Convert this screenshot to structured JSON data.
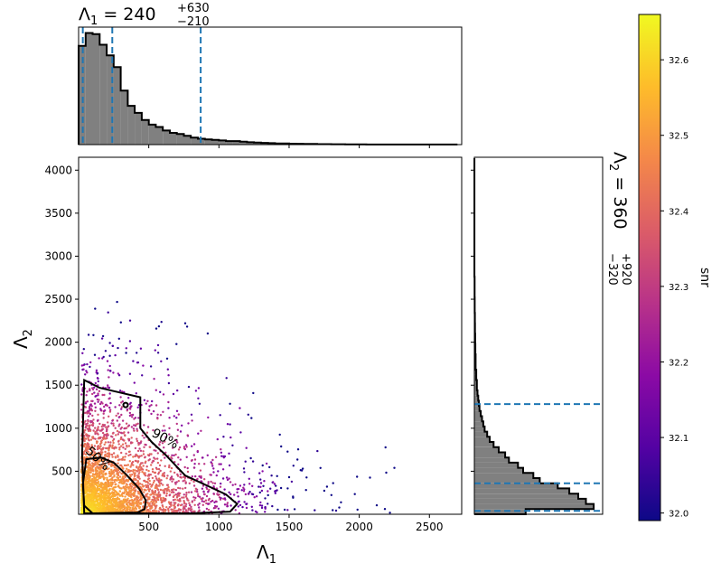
{
  "chart_data": {
    "type": "scatter",
    "top_title": {
      "base": "Λ",
      "sub": "1",
      "eq": " = 240",
      "plus": "+630",
      "minus": "−210"
    },
    "right_title": {
      "base": "Λ",
      "sub": "2",
      "eq": " = 360",
      "plus": "+920",
      "minus": "−320"
    },
    "xlabel": {
      "base": "Λ",
      "sub": "1"
    },
    "ylabel": {
      "base": "Λ",
      "sub": "2"
    },
    "colorbar_label": "snr",
    "xlim": [
      0,
      2730
    ],
    "ylim": [
      0,
      4150
    ],
    "x_ticks": [
      "500",
      "1000",
      "1500",
      "2000",
      "2500"
    ],
    "y_ticks": [
      "500",
      "1000",
      "1500",
      "2000",
      "2500",
      "3000",
      "3500",
      "4000"
    ],
    "colorbar_range": [
      31.99,
      32.66
    ],
    "colorbar_ticks": [
      "32.0",
      "32.1",
      "32.2",
      "32.3",
      "32.4",
      "32.5",
      "32.6"
    ],
    "colormap": "plasma",
    "contours": [
      {
        "label": "50%",
        "points": [
          [
            55,
            640
          ],
          [
            160,
            660
          ],
          [
            250,
            600
          ],
          [
            340,
            460
          ],
          [
            430,
            300
          ],
          [
            480,
            160
          ],
          [
            470,
            60
          ],
          [
            420,
            20
          ],
          [
            100,
            10
          ],
          [
            40,
            100
          ],
          [
            30,
            350
          ],
          [
            55,
            640
          ]
        ]
      },
      {
        "label": "90%",
        "points": [
          [
            40,
            1560
          ],
          [
            150,
            1470
          ],
          [
            280,
            1420
          ],
          [
            440,
            1360
          ],
          [
            440,
            1000
          ],
          [
            520,
            840
          ],
          [
            620,
            690
          ],
          [
            760,
            450
          ],
          [
            920,
            330
          ],
          [
            1050,
            230
          ],
          [
            1130,
            120
          ],
          [
            1080,
            30
          ],
          [
            800,
            10
          ],
          [
            40,
            10
          ],
          [
            25,
            700
          ],
          [
            40,
            1560
          ]
        ]
      }
    ],
    "lambda1_quantiles": [
      30,
      240,
      870
    ],
    "lambda2_quantiles": [
      40,
      360,
      1280
    ],
    "lambda1_hist": {
      "bin_width": 50,
      "counts": [
        0.84,
        0.95,
        0.94,
        0.85,
        0.76,
        0.66,
        0.46,
        0.33,
        0.27,
        0.21,
        0.17,
        0.15,
        0.12,
        0.1,
        0.09,
        0.075,
        0.06,
        0.05,
        0.045,
        0.04,
        0.035,
        0.03,
        0.03,
        0.025,
        0.02,
        0.018,
        0.015,
        0.012,
        0.01,
        0.009,
        0.008,
        0.007,
        0.006,
        0.005,
        0.004,
        0.004,
        0.003,
        0.003,
        0.002,
        0.002,
        0.002,
        0.001,
        0.001,
        0.001,
        0.001,
        0.001,
        0.001,
        0.001,
        0.001,
        0.001,
        0.001,
        0.001,
        0.001,
        0.001,
        0.001
      ]
    },
    "lambda2_hist": {
      "bin_width": 60,
      "counts": [
        0.4,
        0.93,
        0.87,
        0.81,
        0.74,
        0.65,
        0.51,
        0.46,
        0.38,
        0.34,
        0.27,
        0.24,
        0.19,
        0.15,
        0.12,
        0.1,
        0.08,
        0.07,
        0.06,
        0.05,
        0.04,
        0.035,
        0.03,
        0.025,
        0.02,
        0.02,
        0.015,
        0.015,
        0.01,
        0.01,
        0.01,
        0.008,
        0.008,
        0.006,
        0.006,
        0.005,
        0.005,
        0.004,
        0.004,
        0.003,
        0.003,
        0.003,
        0.002,
        0.002,
        0.002,
        0.002,
        0.001,
        0.001,
        0.001,
        0.001,
        0.001,
        0.001,
        0.001,
        0.001,
        0.001,
        0.001,
        0.001,
        0.001,
        0.001,
        0.001,
        0.001,
        0.001,
        0.001,
        0.001,
        0.001,
        0.001,
        0.001,
        0.001,
        0.001
      ]
    },
    "colors": {
      "hist_fill": "#808080",
      "quantile_line": "#1f77b4",
      "contour": "#000000"
    }
  }
}
